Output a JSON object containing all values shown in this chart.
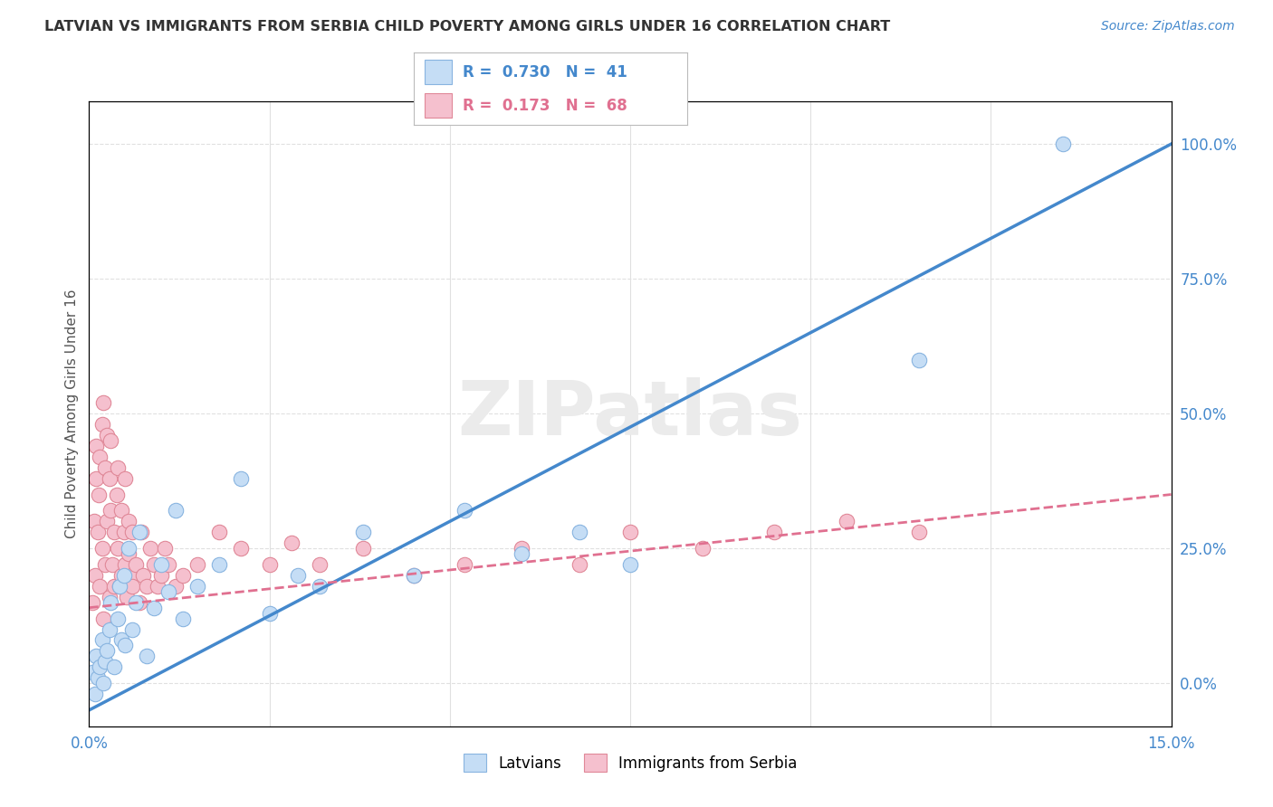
{
  "title": "LATVIAN VS IMMIGRANTS FROM SERBIA CHILD POVERTY AMONG GIRLS UNDER 16 CORRELATION CHART",
  "source_text": "Source: ZipAtlas.com",
  "ylabel": "Child Poverty Among Girls Under 16",
  "x_min": 0.0,
  "x_max": 15.0,
  "y_min": -8.0,
  "y_max": 108.0,
  "legend1_r": "0.730",
  "legend1_n": "41",
  "legend2_r": "0.173",
  "legend2_n": "68",
  "blue_fill": "#c5ddf5",
  "blue_edge": "#88b4e0",
  "pink_fill": "#f5c0ce",
  "pink_edge": "#e08898",
  "blue_line": "#4488cc",
  "pink_line": "#e07090",
  "grid_color": "#e0e0e0",
  "blue_intercept": -5.0,
  "blue_slope": 7.0,
  "pink_intercept": 14.0,
  "pink_slope": 1.4,
  "latvians_x": [
    0.05,
    0.08,
    0.1,
    0.12,
    0.15,
    0.18,
    0.2,
    0.22,
    0.25,
    0.28,
    0.3,
    0.35,
    0.4,
    0.42,
    0.45,
    0.48,
    0.5,
    0.55,
    0.6,
    0.65,
    0.7,
    0.8,
    0.9,
    1.0,
    1.1,
    1.2,
    1.3,
    1.5,
    1.8,
    2.1,
    2.5,
    2.9,
    3.2,
    3.8,
    4.5,
    5.2,
    6.0,
    6.8,
    7.5,
    11.5,
    13.5
  ],
  "latvians_y": [
    2,
    -2,
    5,
    1,
    3,
    8,
    0,
    4,
    6,
    10,
    15,
    3,
    12,
    18,
    8,
    20,
    7,
    25,
    10,
    15,
    28,
    5,
    14,
    22,
    17,
    32,
    12,
    18,
    22,
    38,
    13,
    20,
    18,
    28,
    20,
    32,
    24,
    28,
    22,
    60,
    100
  ],
  "serbia_x": [
    0.05,
    0.07,
    0.08,
    0.1,
    0.1,
    0.12,
    0.13,
    0.15,
    0.15,
    0.18,
    0.18,
    0.2,
    0.2,
    0.22,
    0.22,
    0.25,
    0.25,
    0.28,
    0.28,
    0.3,
    0.3,
    0.32,
    0.35,
    0.35,
    0.38,
    0.4,
    0.4,
    0.42,
    0.45,
    0.45,
    0.48,
    0.5,
    0.5,
    0.52,
    0.55,
    0.55,
    0.58,
    0.6,
    0.6,
    0.65,
    0.7,
    0.72,
    0.75,
    0.8,
    0.85,
    0.9,
    0.95,
    1.0,
    1.05,
    1.1,
    1.2,
    1.3,
    1.5,
    1.8,
    2.1,
    2.5,
    2.8,
    3.2,
    3.8,
    4.5,
    5.2,
    6.0,
    6.8,
    7.5,
    8.5,
    9.5,
    10.5,
    11.5
  ],
  "serbia_y": [
    15,
    30,
    20,
    38,
    44,
    28,
    35,
    42,
    18,
    48,
    25,
    52,
    12,
    40,
    22,
    46,
    30,
    38,
    16,
    32,
    45,
    22,
    28,
    18,
    35,
    25,
    40,
    18,
    32,
    20,
    28,
    22,
    38,
    16,
    30,
    24,
    20,
    28,
    18,
    22,
    15,
    28,
    20,
    18,
    25,
    22,
    18,
    20,
    25,
    22,
    18,
    20,
    22,
    28,
    25,
    22,
    26,
    22,
    25,
    20,
    22,
    25,
    22,
    28,
    25,
    28,
    30,
    28
  ]
}
